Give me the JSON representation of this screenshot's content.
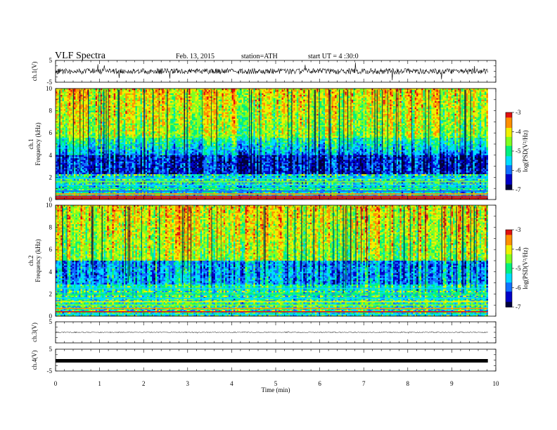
{
  "header": {
    "title": "VLF Spectra",
    "date": "Feb. 13, 2015",
    "station": "station=ATH",
    "start": "start UT = 4 :30:0"
  },
  "colors": {
    "cmap": [
      "#00003c",
      "#0000c8",
      "#1070ff",
      "#00dcff",
      "#00f080",
      "#80ff20",
      "#f0f000",
      "#ff9000",
      "#e01010"
    ],
    "trace": "#000000"
  },
  "chart_data": [
    {
      "type": "line",
      "name": "ch1-waveform",
      "ylabel": "ch.1(V)",
      "ylim": [
        -5,
        5
      ],
      "yticks": [
        "5",
        "-5"
      ],
      "xlim": [
        0,
        10
      ]
    },
    {
      "type": "heatmap",
      "name": "ch1-spectrogram",
      "ylabel": "ch.1\nFrequency (kHz)",
      "ylim": [
        0,
        10
      ],
      "yticks": [
        "0",
        "2",
        "4",
        "6",
        "8",
        "10"
      ],
      "xlim": [
        0,
        10
      ],
      "data_end_min": 9.82,
      "colorbar": {
        "label": "log(PSD(V²/Hz)",
        "range": [
          -7,
          -3
        ],
        "ticks": [
          "-3",
          "-4",
          "-5",
          "-6",
          "-7"
        ]
      }
    },
    {
      "type": "heatmap",
      "name": "ch2-spectrogram",
      "ylabel": "ch.2\nFrequency (kHz)",
      "ylim": [
        0,
        10
      ],
      "yticks": [
        "0",
        "2",
        "4",
        "6",
        "8",
        "10"
      ],
      "xlim": [
        0,
        10
      ],
      "data_end_min": 9.82,
      "colorbar": {
        "label": "log(PSD(V²/Hz)",
        "range": [
          -7,
          -3
        ],
        "ticks": [
          "-3",
          "-4",
          "-5",
          "-6",
          "-7"
        ]
      }
    },
    {
      "type": "line",
      "name": "ch3-waveform",
      "ylabel": "ch.3(V)",
      "ylim": [
        -5,
        5
      ],
      "yticks": [
        "5"
      ],
      "xlim": [
        0,
        10
      ]
    },
    {
      "type": "line",
      "name": "ch4-waveform",
      "ylabel": "ch.4(V)",
      "ylim": [
        -5,
        5
      ],
      "yticks": [
        "5",
        "-5"
      ],
      "xlim": [
        0,
        10
      ],
      "xlabel": "Time (min)",
      "xticks": [
        "0",
        "1",
        "2",
        "3",
        "4",
        "5",
        "6",
        "7",
        "8",
        "9",
        "10"
      ]
    }
  ]
}
